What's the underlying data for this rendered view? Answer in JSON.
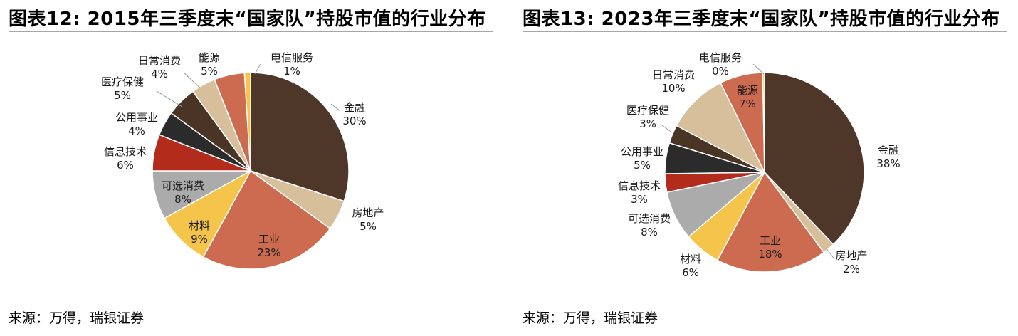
{
  "panels": [
    {
      "title": "图表12: 2015年三季度末“国家队”持股市值的行业分布",
      "source": "来源：万得，瑞银证券"
    },
    {
      "title": "图表13: 2023年三季度末“国家队”持股市值的行业分布",
      "source": "来源：万得，瑞银证券"
    }
  ],
  "colors": {
    "金融": "#4e3629",
    "房地产": "#d7bf9b",
    "工业": "#cc6b4f",
    "材料": "#f4c54a",
    "可选消费": "#ababab",
    "信息技术": "#b22b1b",
    "公用事业": "#2b2b2b",
    "医疗保健": "#4a3426",
    "日常消费": "#d7bf9b",
    "能源": "#cc6b4f",
    "电信服务": "#f4c54a"
  },
  "chart_data": [
    {
      "type": "pie",
      "slices": [
        {
          "label": "金融",
          "value": 30,
          "text": "30%"
        },
        {
          "label": "房地产",
          "value": 5,
          "text": "5%"
        },
        {
          "label": "工业",
          "value": 23,
          "text": "23%"
        },
        {
          "label": "材料",
          "value": 9,
          "text": "9%"
        },
        {
          "label": "可选消费",
          "value": 8,
          "text": "8%"
        },
        {
          "label": "信息技术",
          "value": 6,
          "text": "6%"
        },
        {
          "label": "公用事业",
          "value": 4,
          "text": "4%"
        },
        {
          "label": "医疗保健",
          "value": 5,
          "text": "5%"
        },
        {
          "label": "日常消费",
          "value": 4,
          "text": "4%"
        },
        {
          "label": "能源",
          "value": 5,
          "text": "5%"
        },
        {
          "label": "电信服务",
          "value": 1,
          "text": "1%"
        }
      ]
    },
    {
      "type": "pie",
      "slices": [
        {
          "label": "金融",
          "value": 38,
          "text": "38%"
        },
        {
          "label": "房地产",
          "value": 2,
          "text": "2%"
        },
        {
          "label": "工业",
          "value": 18,
          "text": "18%"
        },
        {
          "label": "材料",
          "value": 6,
          "text": "6%"
        },
        {
          "label": "可选消费",
          "value": 8,
          "text": "8%"
        },
        {
          "label": "信息技术",
          "value": 3,
          "text": "3%"
        },
        {
          "label": "公用事业",
          "value": 5,
          "text": "5%"
        },
        {
          "label": "医疗保健",
          "value": 3,
          "text": "3%"
        },
        {
          "label": "日常消费",
          "value": 10,
          "text": "10%"
        },
        {
          "label": "能源",
          "value": 7,
          "text": "7%"
        },
        {
          "label": "电信服务",
          "value": 0.3,
          "text": "0%"
        }
      ]
    }
  ]
}
